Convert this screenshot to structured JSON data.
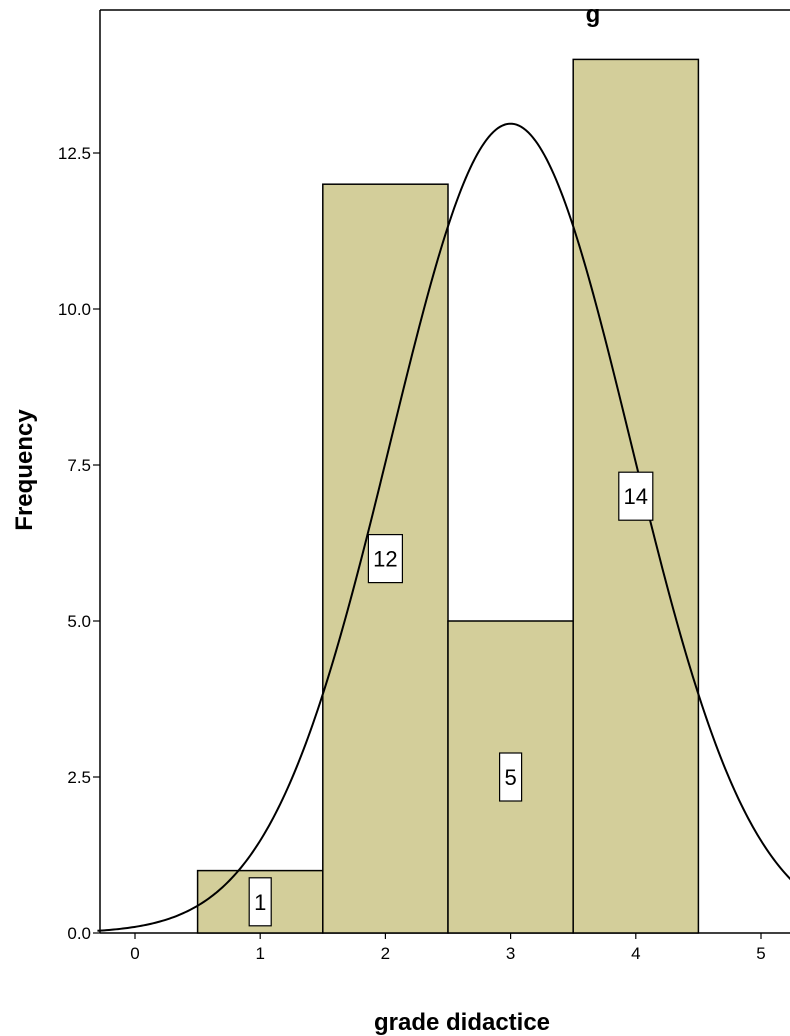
{
  "chart_data": {
    "type": "bar",
    "subtype": "histogram",
    "title": "g",
    "xlabel": "grade didactice",
    "ylabel": "Frequency",
    "x_ticks": [
      "0",
      "1",
      "2",
      "3",
      "4",
      "5"
    ],
    "y_ticks": [
      "0.0",
      "2.5",
      "5.0",
      "7.5",
      "10.0",
      "12.5"
    ],
    "xlim": [
      -0.3,
      5.25
    ],
    "ylim": [
      0,
      15
    ],
    "bar_color": "#D3CE9A",
    "bins": [
      {
        "start": 0.5,
        "end": 1.5,
        "value": 1,
        "label": "1"
      },
      {
        "start": 1.5,
        "end": 2.5,
        "value": 12,
        "label": "12"
      },
      {
        "start": 2.5,
        "end": 3.5,
        "value": 5,
        "label": "5"
      },
      {
        "start": 3.5,
        "end": 4.5,
        "value": 14,
        "label": "14"
      }
    ],
    "normal_curve": {
      "mean": 3.0,
      "sd": 0.96,
      "peak": 12.97
    },
    "grid": false,
    "legend": "none"
  }
}
